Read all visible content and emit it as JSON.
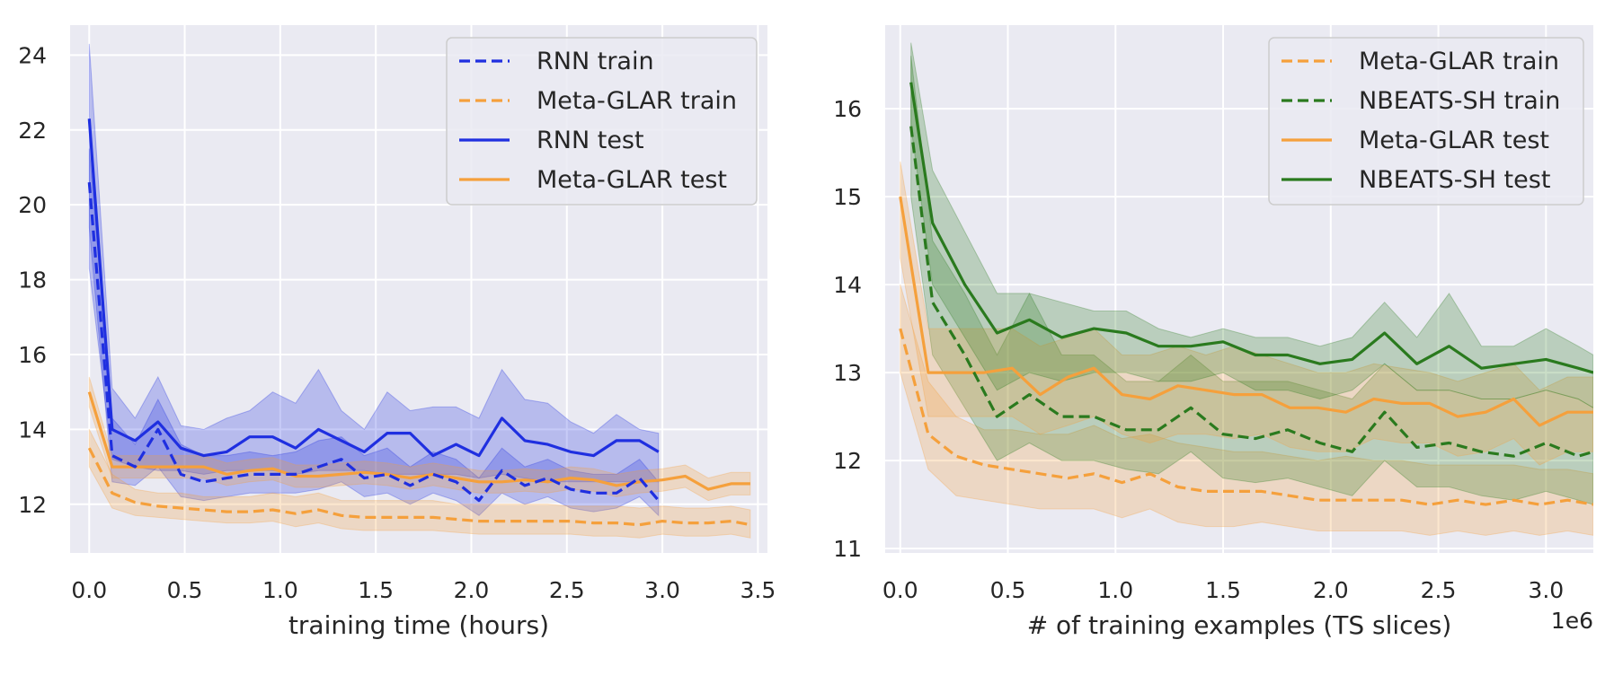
{
  "chart_data": [
    {
      "type": "line",
      "xlabel": "training time (hours)",
      "ylabel": "",
      "xlim": [
        -0.1,
        3.55
      ],
      "ylim": [
        10.7,
        24.8
      ],
      "xticks": [
        "0.0",
        "0.5",
        "1.0",
        "1.5",
        "2.0",
        "2.5",
        "3.0",
        "3.5"
      ],
      "yticks": [
        "12",
        "14",
        "16",
        "18",
        "20",
        "22",
        "24"
      ],
      "grid": true,
      "legend_position": "top-right",
      "series": [
        {
          "name": "RNN train",
          "style": "dashed",
          "color": "#1f2fe0",
          "band_color": "#1f2fe0",
          "x": [
            0.0,
            0.12,
            0.24,
            0.36,
            0.48,
            0.6,
            0.72,
            0.84,
            0.96,
            1.08,
            1.2,
            1.32,
            1.44,
            1.56,
            1.68,
            1.8,
            1.92,
            2.04,
            2.16,
            2.28,
            2.4,
            2.52,
            2.64,
            2.76,
            2.88,
            2.98
          ],
          "y": [
            20.6,
            13.3,
            13.0,
            14.0,
            12.8,
            12.6,
            12.7,
            12.8,
            12.8,
            12.8,
            13.0,
            13.2,
            12.7,
            12.8,
            12.5,
            12.8,
            12.6,
            12.1,
            12.9,
            12.5,
            12.7,
            12.4,
            12.3,
            12.3,
            12.7,
            12.1
          ],
          "upper": [
            21.5,
            14.3,
            13.6,
            14.8,
            13.6,
            13.3,
            13.3,
            13.4,
            13.3,
            13.4,
            13.7,
            13.8,
            13.3,
            13.5,
            13.0,
            13.4,
            13.2,
            12.7,
            13.5,
            13.0,
            13.2,
            12.9,
            12.8,
            12.8,
            13.2,
            12.6
          ],
          "lower": [
            19.4,
            12.6,
            12.5,
            13.0,
            12.2,
            12.1,
            12.2,
            12.3,
            12.3,
            12.3,
            12.4,
            12.6,
            12.2,
            12.3,
            12.0,
            12.3,
            12.1,
            11.7,
            12.3,
            12.0,
            12.2,
            11.9,
            11.8,
            11.9,
            12.2,
            11.7
          ]
        },
        {
          "name": "Meta-GLAR train",
          "style": "dashed",
          "color": "#f5a03c",
          "band_color": "#f5a03c",
          "x": [
            0.0,
            0.12,
            0.24,
            0.36,
            0.48,
            0.6,
            0.72,
            0.84,
            0.96,
            1.08,
            1.2,
            1.32,
            1.44,
            1.56,
            1.68,
            1.8,
            1.92,
            2.04,
            2.16,
            2.28,
            2.4,
            2.52,
            2.64,
            2.76,
            2.88,
            3.0,
            3.12,
            3.24,
            3.36,
            3.46
          ],
          "y": [
            13.5,
            12.3,
            12.05,
            11.95,
            11.9,
            11.85,
            11.8,
            11.8,
            11.85,
            11.75,
            11.85,
            11.7,
            11.65,
            11.65,
            11.65,
            11.65,
            11.6,
            11.55,
            11.55,
            11.55,
            11.55,
            11.55,
            11.5,
            11.5,
            11.45,
            11.55,
            11.5,
            11.5,
            11.55,
            11.45
          ],
          "upper": [
            14.0,
            12.8,
            12.4,
            12.3,
            12.3,
            12.2,
            12.2,
            12.2,
            12.3,
            12.2,
            12.3,
            12.1,
            12.1,
            12.1,
            12.1,
            12.1,
            12.0,
            12.0,
            12.0,
            12.0,
            12.0,
            11.95,
            11.95,
            11.95,
            11.9,
            11.95,
            11.9,
            11.9,
            11.95,
            11.85
          ],
          "lower": [
            13.0,
            11.9,
            11.7,
            11.65,
            11.6,
            11.55,
            11.5,
            11.5,
            11.55,
            11.4,
            11.5,
            11.35,
            11.3,
            11.3,
            11.3,
            11.3,
            11.25,
            11.2,
            11.2,
            11.2,
            11.2,
            11.2,
            11.15,
            11.15,
            11.1,
            11.2,
            11.15,
            11.15,
            11.2,
            11.1
          ]
        },
        {
          "name": "RNN test",
          "style": "solid",
          "color": "#1f2fe0",
          "band_color": "#1f2fe0",
          "x": [
            0.0,
            0.12,
            0.24,
            0.36,
            0.48,
            0.6,
            0.72,
            0.84,
            0.96,
            1.08,
            1.2,
            1.32,
            1.44,
            1.56,
            1.68,
            1.8,
            1.92,
            2.04,
            2.16,
            2.28,
            2.4,
            2.52,
            2.64,
            2.76,
            2.88,
            2.98
          ],
          "y": [
            22.3,
            14.0,
            13.7,
            14.2,
            13.5,
            13.3,
            13.4,
            13.8,
            13.8,
            13.5,
            14.0,
            13.7,
            13.4,
            13.9,
            13.9,
            13.3,
            13.6,
            13.3,
            14.3,
            13.7,
            13.6,
            13.4,
            13.3,
            13.7,
            13.7,
            13.4
          ],
          "upper": [
            24.3,
            15.1,
            14.3,
            15.4,
            14.1,
            14.0,
            14.3,
            14.5,
            15.0,
            14.7,
            15.6,
            14.5,
            14.0,
            15.0,
            14.5,
            14.6,
            14.6,
            14.3,
            15.6,
            14.8,
            14.7,
            14.2,
            13.9,
            14.4,
            14.0,
            13.9
          ],
          "lower": [
            18.3,
            13.2,
            13.0,
            12.9,
            12.9,
            12.8,
            12.9,
            12.9,
            12.9,
            12.8,
            12.9,
            12.9,
            12.9,
            12.8,
            12.8,
            12.8,
            12.8,
            12.7,
            12.8,
            12.7,
            12.6,
            12.6,
            12.6,
            12.6,
            12.6,
            12.6
          ]
        },
        {
          "name": "Meta-GLAR test",
          "style": "solid",
          "color": "#f5a03c",
          "band_color": "#f5a03c",
          "x": [
            0.0,
            0.12,
            0.24,
            0.36,
            0.48,
            0.6,
            0.72,
            0.84,
            0.96,
            1.08,
            1.2,
            1.32,
            1.44,
            1.56,
            1.68,
            1.8,
            1.92,
            2.04,
            2.16,
            2.28,
            2.4,
            2.52,
            2.64,
            2.76,
            2.88,
            3.0,
            3.12,
            3.24,
            3.36,
            3.46
          ],
          "y": [
            15.0,
            13.0,
            13.0,
            13.0,
            13.0,
            13.0,
            12.8,
            12.9,
            12.95,
            12.75,
            12.75,
            12.8,
            12.85,
            12.8,
            12.7,
            12.8,
            12.7,
            12.6,
            12.6,
            12.65,
            12.6,
            12.7,
            12.65,
            12.5,
            12.6,
            12.65,
            12.75,
            12.4,
            12.55,
            12.55
          ],
          "upper": [
            15.4,
            13.3,
            13.3,
            13.3,
            13.3,
            13.3,
            13.1,
            13.2,
            13.25,
            13.05,
            13.05,
            13.1,
            13.15,
            13.1,
            13.0,
            13.1,
            13.0,
            12.9,
            12.9,
            12.95,
            12.9,
            13.0,
            12.95,
            12.8,
            12.9,
            12.95,
            13.05,
            12.7,
            12.85,
            12.85
          ],
          "lower": [
            14.6,
            12.7,
            12.7,
            12.7,
            12.7,
            12.7,
            12.5,
            12.6,
            12.65,
            12.45,
            12.45,
            12.5,
            12.55,
            12.5,
            12.4,
            12.5,
            12.4,
            12.3,
            12.3,
            12.35,
            12.3,
            12.4,
            12.35,
            12.2,
            12.3,
            12.35,
            12.45,
            12.1,
            12.25,
            12.25
          ]
        }
      ]
    },
    {
      "type": "line",
      "xlabel": "# of training examples (TS slices)",
      "ylabel": "",
      "x_scale_label": "1e6",
      "xlim": [
        -0.07,
        3.22
      ],
      "ylim": [
        10.95,
        16.95
      ],
      "xticks": [
        "0.0",
        "0.5",
        "1.0",
        "1.5",
        "2.0",
        "2.5",
        "3.0"
      ],
      "yticks": [
        "11",
        "12",
        "13",
        "14",
        "15",
        "16"
      ],
      "grid": true,
      "legend_position": "top-right",
      "series": [
        {
          "name": "Meta-GLAR train",
          "style": "dashed",
          "color": "#f5a03c",
          "band_color": "#f5a03c",
          "x": [
            0.0,
            0.13,
            0.26,
            0.39,
            0.52,
            0.65,
            0.78,
            0.9,
            1.03,
            1.16,
            1.29,
            1.42,
            1.55,
            1.68,
            1.81,
            1.94,
            2.07,
            2.2,
            2.33,
            2.46,
            2.59,
            2.72,
            2.85,
            2.97,
            3.1,
            3.22
          ],
          "y": [
            13.5,
            12.3,
            12.05,
            11.95,
            11.9,
            11.85,
            11.8,
            11.85,
            11.75,
            11.85,
            11.7,
            11.65,
            11.65,
            11.65,
            11.6,
            11.55,
            11.55,
            11.55,
            11.55,
            11.5,
            11.55,
            11.5,
            11.55,
            11.5,
            11.55,
            11.5
          ],
          "upper": [
            14.0,
            12.9,
            12.5,
            12.35,
            12.35,
            12.3,
            12.3,
            12.4,
            12.25,
            12.3,
            12.2,
            12.15,
            12.1,
            12.1,
            12.05,
            12.0,
            12.05,
            12.0,
            12.0,
            11.95,
            11.95,
            11.95,
            11.95,
            11.9,
            11.9,
            11.85
          ],
          "lower": [
            13.0,
            11.9,
            11.6,
            11.55,
            11.5,
            11.45,
            11.45,
            11.45,
            11.35,
            11.45,
            11.3,
            11.25,
            11.25,
            11.3,
            11.25,
            11.2,
            11.2,
            11.2,
            11.2,
            11.15,
            11.2,
            11.15,
            11.2,
            11.15,
            11.2,
            11.15
          ]
        },
        {
          "name": "NBEATS-SH train",
          "style": "dashed",
          "color": "#2a7a1e",
          "band_color": "#2a7a1e",
          "x": [
            0.05,
            0.15,
            0.3,
            0.45,
            0.6,
            0.75,
            0.9,
            1.05,
            1.2,
            1.35,
            1.5,
            1.65,
            1.8,
            1.95,
            2.1,
            2.25,
            2.4,
            2.55,
            2.7,
            2.85,
            3.0,
            3.15,
            3.22
          ],
          "y": [
            15.8,
            13.8,
            13.2,
            12.5,
            12.75,
            12.5,
            12.5,
            12.35,
            12.35,
            12.6,
            12.3,
            12.25,
            12.35,
            12.2,
            12.1,
            12.55,
            12.15,
            12.2,
            12.1,
            12.05,
            12.2,
            12.05,
            12.1
          ],
          "upper": [
            16.6,
            14.5,
            13.9,
            13.2,
            13.9,
            13.2,
            13.2,
            12.9,
            12.9,
            13.2,
            12.9,
            12.9,
            12.9,
            12.8,
            12.7,
            13.1,
            12.8,
            12.8,
            12.7,
            12.7,
            12.8,
            12.7,
            12.6
          ],
          "lower": [
            15.0,
            13.2,
            12.6,
            12.0,
            12.2,
            12.0,
            12.0,
            11.9,
            11.85,
            12.1,
            11.8,
            11.75,
            11.8,
            11.7,
            11.6,
            12.0,
            11.7,
            11.7,
            11.6,
            11.55,
            11.65,
            11.55,
            11.5
          ]
        },
        {
          "name": "Meta-GLAR test",
          "style": "solid",
          "color": "#f5a03c",
          "band_color": "#f5a03c",
          "x": [
            0.0,
            0.13,
            0.26,
            0.39,
            0.52,
            0.65,
            0.78,
            0.9,
            1.03,
            1.16,
            1.29,
            1.42,
            1.55,
            1.68,
            1.81,
            1.94,
            2.07,
            2.2,
            2.33,
            2.46,
            2.59,
            2.72,
            2.85,
            2.97,
            3.1,
            3.22
          ],
          "y": [
            15.0,
            13.0,
            13.0,
            13.0,
            13.05,
            12.75,
            12.95,
            13.05,
            12.75,
            12.7,
            12.85,
            12.8,
            12.75,
            12.75,
            12.6,
            12.6,
            12.55,
            12.7,
            12.65,
            12.65,
            12.5,
            12.55,
            12.7,
            12.4,
            12.55,
            12.55
          ],
          "upper": [
            15.4,
            13.5,
            13.5,
            13.5,
            13.5,
            13.3,
            13.4,
            13.5,
            13.2,
            13.2,
            13.3,
            13.2,
            13.3,
            13.2,
            13.1,
            13.0,
            13.0,
            13.1,
            13.05,
            13.0,
            12.9,
            13.0,
            13.1,
            12.8,
            12.95,
            12.95
          ],
          "lower": [
            14.3,
            12.5,
            12.5,
            12.5,
            12.5,
            12.3,
            12.4,
            12.5,
            12.3,
            12.2,
            12.3,
            12.3,
            12.25,
            12.3,
            12.15,
            12.1,
            12.1,
            12.25,
            12.2,
            12.2,
            12.05,
            12.1,
            12.25,
            11.95,
            12.1,
            12.1
          ]
        },
        {
          "name": "NBEATS-SH test",
          "style": "solid",
          "color": "#2a7a1e",
          "band_color": "#2a7a1e",
          "x": [
            0.05,
            0.15,
            0.3,
            0.45,
            0.6,
            0.75,
            0.9,
            1.05,
            1.2,
            1.35,
            1.5,
            1.65,
            1.8,
            1.95,
            2.1,
            2.25,
            2.4,
            2.55,
            2.7,
            2.85,
            3.0,
            3.15,
            3.22
          ],
          "y": [
            16.3,
            14.7,
            14.0,
            13.45,
            13.6,
            13.4,
            13.5,
            13.45,
            13.3,
            13.3,
            13.35,
            13.2,
            13.2,
            13.1,
            13.15,
            13.45,
            13.1,
            13.3,
            13.05,
            13.1,
            13.15,
            13.05,
            13.0
          ],
          "upper": [
            16.75,
            15.3,
            14.6,
            13.9,
            13.9,
            13.8,
            13.7,
            13.7,
            13.5,
            13.4,
            13.5,
            13.4,
            13.4,
            13.3,
            13.4,
            13.8,
            13.4,
            13.9,
            13.3,
            13.3,
            13.5,
            13.3,
            13.2
          ],
          "lower": [
            15.8,
            14.0,
            13.4,
            12.8,
            13.0,
            12.9,
            13.0,
            13.0,
            12.9,
            12.9,
            13.0,
            12.8,
            12.8,
            12.7,
            12.8,
            13.1,
            12.8,
            12.8,
            12.7,
            12.7,
            12.8,
            12.7,
            12.6
          ]
        }
      ]
    }
  ]
}
